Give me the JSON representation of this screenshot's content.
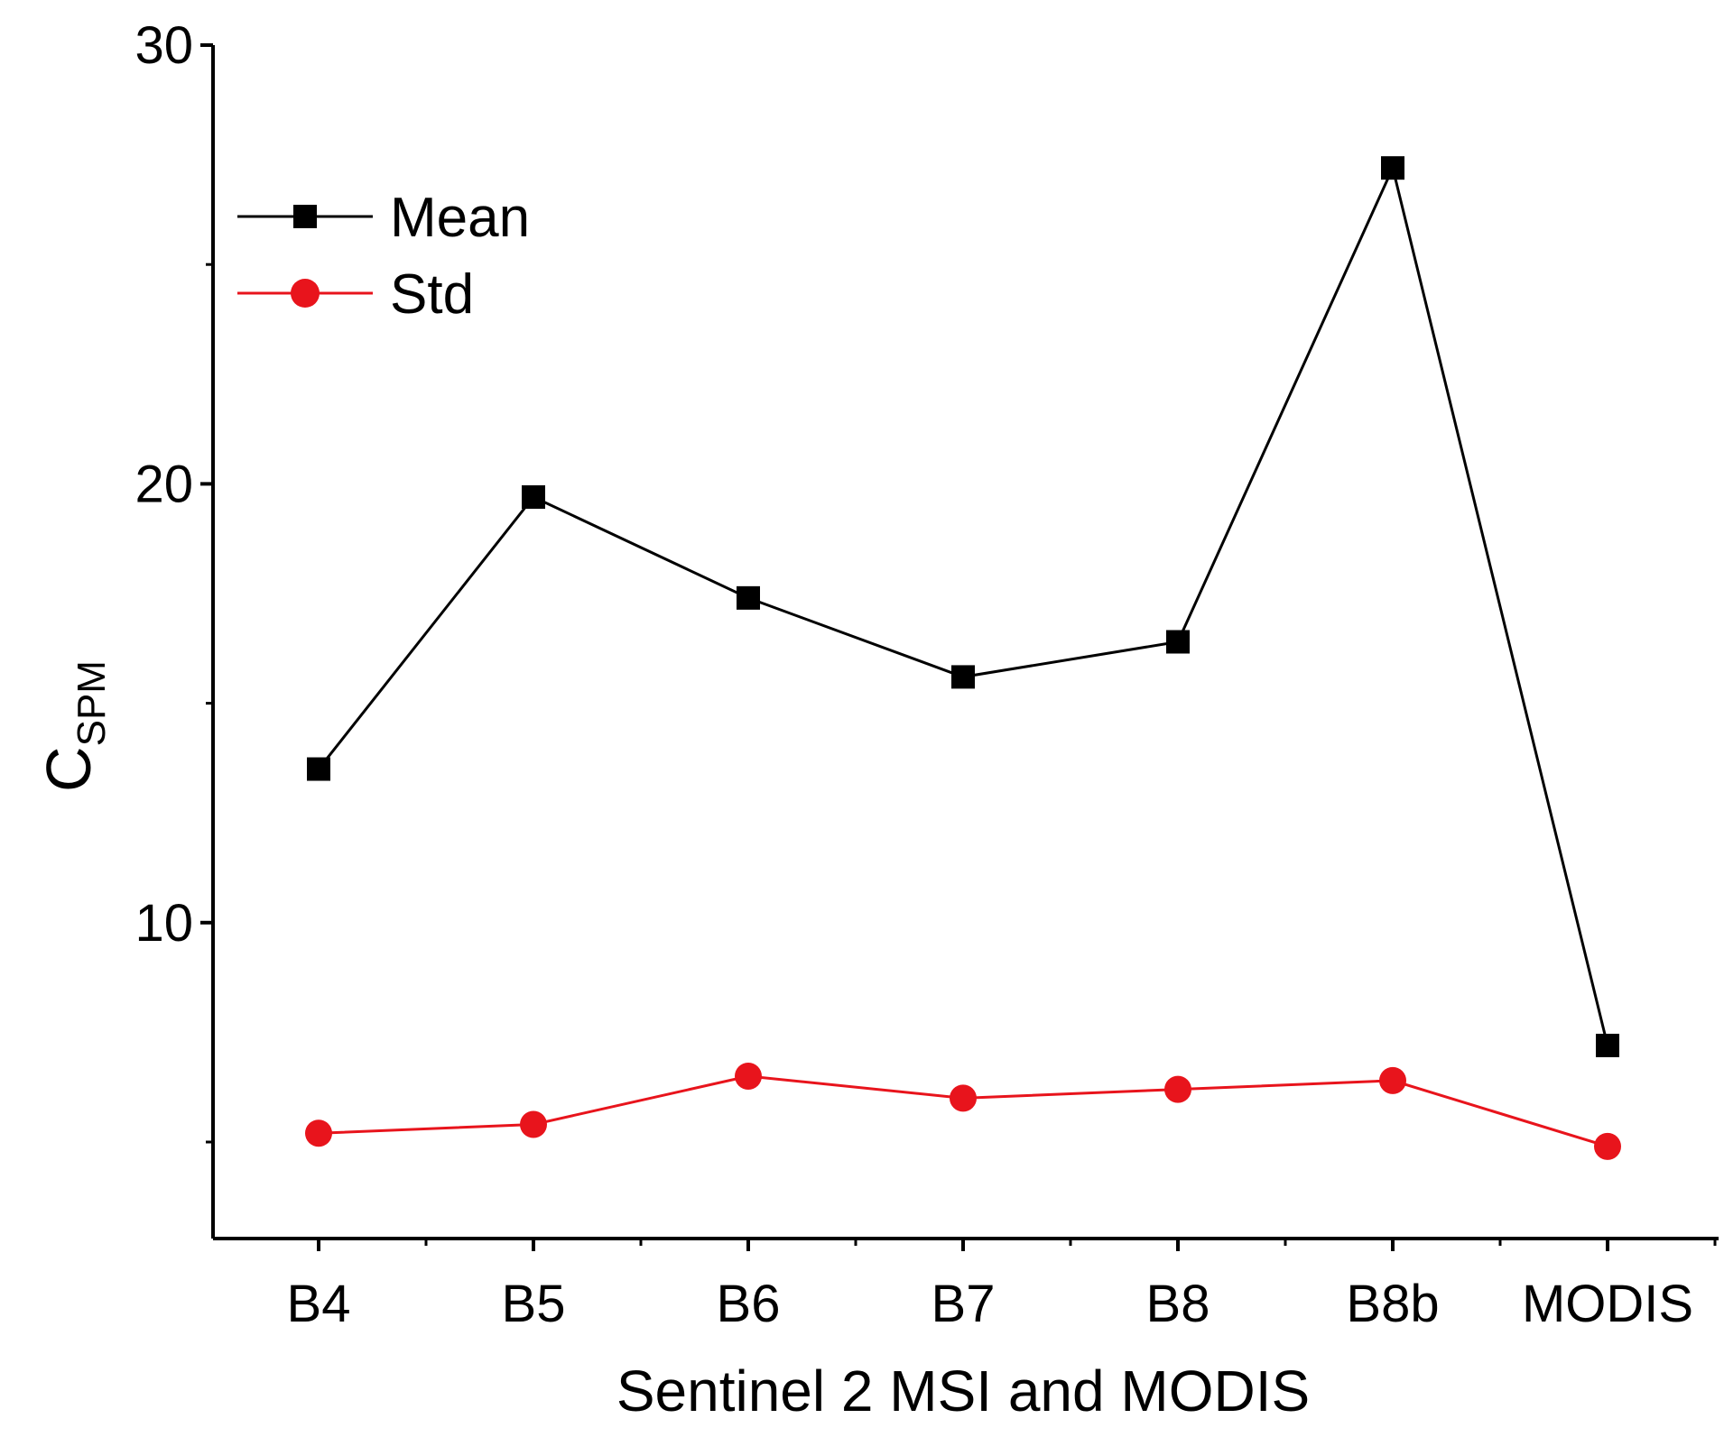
{
  "chart_data": {
    "type": "line",
    "title": "",
    "xlabel": "Sentinel 2 MSI and MODIS",
    "ylabel": "C",
    "ylabel_subscript": "SPM",
    "categories": [
      "B4",
      "B5",
      "B6",
      "B7",
      "B8",
      "B8b",
      "MODIS"
    ],
    "ylim": [
      2.8,
      30
    ],
    "yticks": [
      10,
      20,
      30
    ],
    "ytick_labels": [
      "10",
      "20",
      "30"
    ],
    "grid": false,
    "legend_position": "top-left",
    "series": [
      {
        "name": "Mean",
        "color": "#000000",
        "marker": "square",
        "values": [
          13.5,
          19.7,
          17.4,
          15.6,
          16.4,
          27.2,
          7.2
        ]
      },
      {
        "name": "Std",
        "color": "#e8141c",
        "marker": "circle",
        "values": [
          5.2,
          5.4,
          6.5,
          6.0,
          6.2,
          6.4,
          4.9
        ]
      }
    ]
  }
}
